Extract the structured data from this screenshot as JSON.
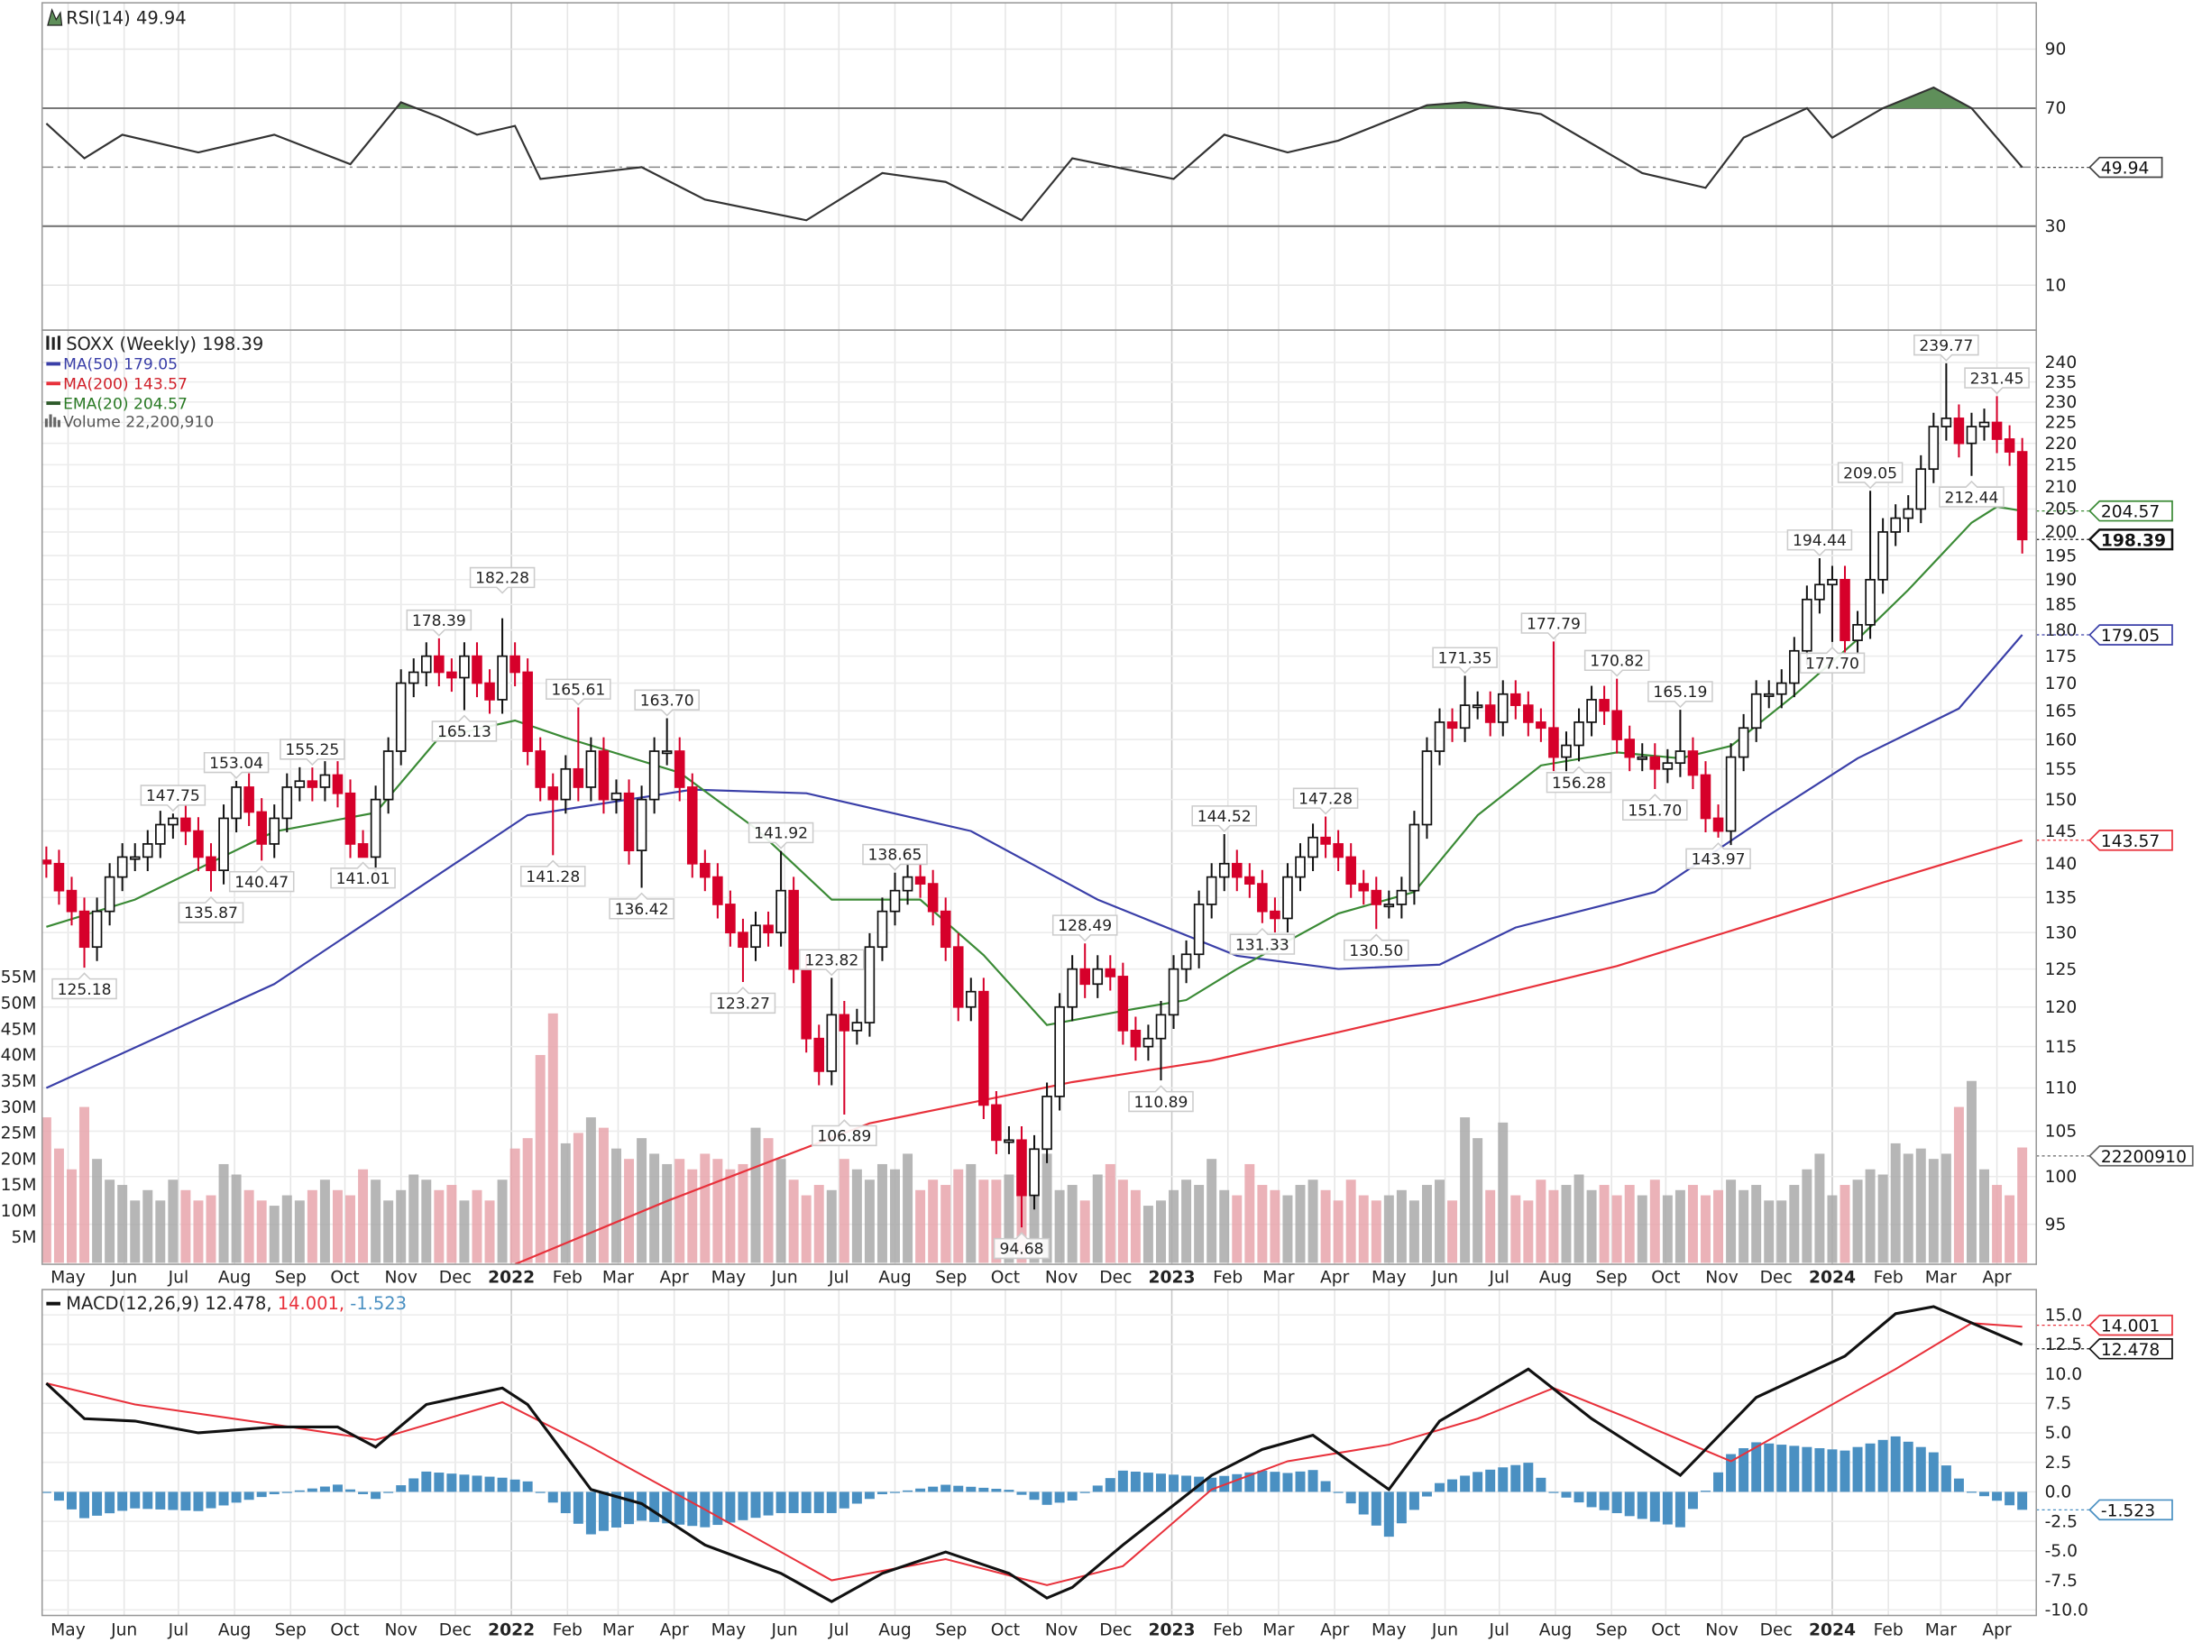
{
  "rsi_panel": {
    "legend": "RSI(14) 49.94",
    "badge": "49.94",
    "levels": {
      "overbought": 70,
      "midline": 50,
      "oversold": 30
    },
    "ticks": [
      "90",
      "70",
      "30",
      "10"
    ]
  },
  "price_panel": {
    "legend_title": "SOXX (Weekly) 198.39",
    "legend_ma50": "MA(50) 179.05",
    "legend_ma200": "MA(200) 143.57",
    "legend_ema20": "EMA(20) 204.57",
    "legend_volume": "Volume 22,200,910",
    "badges": {
      "ema20": "204.57",
      "close": "198.39",
      "ma50": "179.05",
      "ma200": "143.57",
      "volume": "22200910"
    },
    "volume_ticks": [
      "5M",
      "10M",
      "15M",
      "20M",
      "25M",
      "30M",
      "35M",
      "40M",
      "45M",
      "50M",
      "55M"
    ]
  },
  "macd_panel": {
    "legend_prefix": "MACD(12,26,9)",
    "legend_macd": "12.478,",
    "legend_signal": "14.001,",
    "legend_hist": "-1.523",
    "badges": {
      "signal": "14.001",
      "macd": "12.478",
      "hist": "-1.523"
    },
    "ticks": [
      "15.0",
      "12.5",
      "10.0",
      "7.5",
      "5.0",
      "2.5",
      "0.0",
      "-2.5",
      "-5.0",
      "-7.5",
      "-10.0"
    ]
  },
  "colors": {
    "up_candle": "#ffffff",
    "down_candle": "#d6002a",
    "ma50": "#3a3fa8",
    "ma200": "#e8313b",
    "ema20": "#3a8a35",
    "volume_up": "#a9a9a9",
    "volume_down": "#e8a4ac",
    "macd_hist": "#4a90c2",
    "rsi_fill": "#5f8f5a"
  },
  "chart_data": {
    "type": "candlestick",
    "symbol": "SOXX",
    "period": "Weekly",
    "y_scale": "log",
    "ylim": [
      95,
      240
    ],
    "first_week": "2021-04-19",
    "price_ticks": [
      95,
      100,
      105,
      110,
      115,
      120,
      125,
      130,
      135,
      140,
      145,
      150,
      155,
      160,
      165,
      170,
      175,
      180,
      185,
      190,
      195,
      200,
      205,
      210,
      215,
      220,
      225,
      230,
      235,
      240
    ],
    "x_ticks": [
      {
        "label": "May",
        "date": "2021-05-01"
      },
      {
        "label": "Jun",
        "date": "2021-06-01"
      },
      {
        "label": "Jul",
        "date": "2021-07-01"
      },
      {
        "label": "Aug",
        "date": "2021-08-01"
      },
      {
        "label": "Sep",
        "date": "2021-09-01"
      },
      {
        "label": "Oct",
        "date": "2021-10-01"
      },
      {
        "label": "Nov",
        "date": "2021-11-01"
      },
      {
        "label": "Dec",
        "date": "2021-12-01"
      },
      {
        "label": "2022",
        "date": "2022-01-01",
        "bold": true
      },
      {
        "label": "Feb",
        "date": "2022-02-01"
      },
      {
        "label": "Mar",
        "date": "2022-03-01"
      },
      {
        "label": "Apr",
        "date": "2022-04-01"
      },
      {
        "label": "May",
        "date": "2022-05-01"
      },
      {
        "label": "Jun",
        "date": "2022-06-01"
      },
      {
        "label": "Jul",
        "date": "2022-07-01"
      },
      {
        "label": "Aug",
        "date": "2022-08-01"
      },
      {
        "label": "Sep",
        "date": "2022-09-01"
      },
      {
        "label": "Oct",
        "date": "2022-10-01"
      },
      {
        "label": "Nov",
        "date": "2022-11-01"
      },
      {
        "label": "Dec",
        "date": "2022-12-01"
      },
      {
        "label": "2023",
        "date": "2023-01-01",
        "bold": true
      },
      {
        "label": "Feb",
        "date": "2023-02-01"
      },
      {
        "label": "Mar",
        "date": "2023-03-01"
      },
      {
        "label": "Apr",
        "date": "2023-04-01"
      },
      {
        "label": "May",
        "date": "2023-05-01"
      },
      {
        "label": "Jun",
        "date": "2023-06-01"
      },
      {
        "label": "Jul",
        "date": "2023-07-01"
      },
      {
        "label": "Aug",
        "date": "2023-08-01"
      },
      {
        "label": "Sep",
        "date": "2023-09-01"
      },
      {
        "label": "Oct",
        "date": "2023-10-01"
      },
      {
        "label": "Nov",
        "date": "2023-11-01"
      },
      {
        "label": "Dec",
        "date": "2023-12-01"
      },
      {
        "label": "2024",
        "date": "2024-01-01",
        "bold": true
      },
      {
        "label": "Feb",
        "date": "2024-02-01"
      },
      {
        "label": "Mar",
        "date": "2024-03-01"
      },
      {
        "label": "Apr",
        "date": "2024-04-01"
      }
    ],
    "closes": [
      140,
      136,
      133,
      128,
      133,
      138,
      141,
      141,
      143,
      146,
      147,
      145,
      141,
      139,
      147,
      152,
      148,
      143,
      147,
      152,
      153,
      152,
      154,
      151,
      143,
      141,
      150,
      158,
      170,
      172,
      175,
      172,
      171,
      175,
      170,
      167,
      175,
      172,
      158,
      152,
      150,
      155,
      152,
      158,
      150,
      151,
      142,
      150,
      158,
      158,
      152,
      140,
      138,
      134,
      130,
      128,
      131,
      130,
      136,
      125,
      116,
      112,
      119,
      117,
      118,
      128,
      133,
      136,
      138,
      137,
      133,
      128,
      120,
      122,
      108,
      104,
      104,
      98,
      103,
      109,
      120,
      125,
      123,
      125,
      124,
      117,
      115,
      116,
      119,
      125,
      127,
      134,
      138,
      140,
      138,
      137,
      133,
      132,
      138,
      141,
      144,
      143,
      141,
      137,
      136,
      134,
      134,
      136,
      146,
      158,
      163,
      162,
      166,
      166,
      163,
      168,
      166,
      163,
      162,
      157,
      159,
      163,
      167,
      165,
      160,
      157,
      157,
      155,
      156,
      158,
      154,
      147,
      145,
      157,
      162,
      168,
      168,
      170,
      176,
      186,
      189,
      190,
      178,
      181,
      190,
      200,
      203,
      205,
      214,
      224,
      226,
      220,
      224,
      225,
      221,
      218,
      198.39
    ],
    "volume_millions": [
      28,
      22,
      18,
      30,
      20,
      16,
      15,
      12,
      14,
      12,
      16,
      14,
      12,
      13,
      19,
      17,
      14,
      12,
      11,
      13,
      12,
      14,
      16,
      14,
      13,
      18,
      16,
      12,
      14,
      17,
      16,
      14,
      15,
      12,
      14,
      12,
      16,
      22,
      24,
      40,
      48,
      23,
      25,
      28,
      26,
      22,
      20,
      24,
      21,
      19,
      20,
      18,
      21,
      20,
      18,
      19,
      26,
      24,
      20,
      16,
      13,
      15,
      14,
      20,
      18,
      16,
      19,
      18,
      21,
      14,
      16,
      15,
      18,
      19,
      16,
      16,
      17,
      15,
      18,
      21,
      14,
      15,
      12,
      17,
      19,
      16,
      14,
      11,
      12,
      14,
      16,
      15,
      20,
      14,
      13,
      19,
      15,
      14,
      13,
      15,
      16,
      14,
      12,
      16,
      13,
      12,
      13,
      14,
      12,
      15,
      16,
      12,
      28,
      24,
      14,
      27,
      13,
      12,
      16,
      14,
      15,
      17,
      14,
      15,
      13,
      15,
      13,
      16,
      13,
      14,
      15,
      13,
      14,
      16,
      14,
      15,
      12,
      12,
      15,
      18,
      21,
      13,
      15,
      16,
      18,
      17,
      23,
      21,
      22,
      20,
      21,
      30,
      35,
      18,
      15,
      13,
      22.2
    ],
    "annotations": [
      {
        "text": "125.18",
        "date": "2021-05-10",
        "type": "low"
      },
      {
        "text": "147.75",
        "date": "2021-06-28",
        "type": "high"
      },
      {
        "text": "135.87",
        "date": "2021-07-19",
        "type": "low"
      },
      {
        "text": "153.04",
        "date": "2021-08-02",
        "type": "high"
      },
      {
        "text": "140.47",
        "date": "2021-08-16",
        "type": "low"
      },
      {
        "text": "155.25",
        "date": "2021-09-13",
        "type": "high"
      },
      {
        "text": "141.01",
        "date": "2021-10-11",
        "type": "low"
      },
      {
        "text": "178.39",
        "date": "2021-11-22",
        "type": "high"
      },
      {
        "text": "165.13",
        "date": "2021-12-06",
        "type": "low"
      },
      {
        "text": "182.28",
        "date": "2021-12-27",
        "type": "high"
      },
      {
        "text": "141.28",
        "date": "2022-01-24",
        "type": "low"
      },
      {
        "text": "165.61",
        "date": "2022-02-07",
        "type": "high"
      },
      {
        "text": "136.42",
        "date": "2022-03-14",
        "type": "low"
      },
      {
        "text": "163.70",
        "date": "2022-03-28",
        "type": "high"
      },
      {
        "text": "123.27",
        "date": "2022-05-09",
        "type": "low"
      },
      {
        "text": "141.92",
        "date": "2022-05-30",
        "type": "high"
      },
      {
        "text": "123.82",
        "date": "2022-06-27",
        "type": "high"
      },
      {
        "text": "106.89",
        "date": "2022-07-04",
        "type": "low"
      },
      {
        "text": "138.65",
        "date": "2022-08-01",
        "type": "high"
      },
      {
        "text": "94.68",
        "date": "2022-10-10",
        "type": "low"
      },
      {
        "text": "128.49",
        "date": "2022-11-14",
        "type": "high"
      },
      {
        "text": "110.89",
        "date": "2022-12-26",
        "type": "low"
      },
      {
        "text": "144.52",
        "date": "2023-01-30",
        "type": "high"
      },
      {
        "text": "131.33",
        "date": "2023-02-20",
        "type": "low"
      },
      {
        "text": "147.28",
        "date": "2023-03-27",
        "type": "high"
      },
      {
        "text": "130.50",
        "date": "2023-04-24",
        "type": "low"
      },
      {
        "text": "171.35",
        "date": "2023-06-12",
        "type": "high"
      },
      {
        "text": "177.79",
        "date": "2023-07-31",
        "type": "high"
      },
      {
        "text": "156.28",
        "date": "2023-08-14",
        "type": "low"
      },
      {
        "text": "170.82",
        "date": "2023-09-04",
        "type": "high"
      },
      {
        "text": "151.70",
        "date": "2023-09-25",
        "type": "low"
      },
      {
        "text": "165.19",
        "date": "2023-10-09",
        "type": "high"
      },
      {
        "text": "143.97",
        "date": "2023-10-30",
        "type": "low"
      },
      {
        "text": "194.44",
        "date": "2023-12-25",
        "type": "high"
      },
      {
        "text": "177.70",
        "date": "2024-01-01",
        "type": "low"
      },
      {
        "text": "209.05",
        "date": "2024-01-22",
        "type": "high"
      },
      {
        "text": "239.77",
        "date": "2024-03-04",
        "type": "high"
      },
      {
        "text": "212.44",
        "date": "2024-03-18",
        "type": "low"
      },
      {
        "text": "231.45",
        "date": "2024-04-01",
        "type": "high"
      }
    ],
    "ma50": [
      [
        "2021-04-19",
        110
      ],
      [
        "2021-08-23",
        123
      ],
      [
        "2022-01-10",
        147.5
      ],
      [
        "2022-04-11",
        151.6
      ],
      [
        "2022-06-13",
        151
      ],
      [
        "2022-09-12",
        145
      ],
      [
        "2022-11-21",
        134.7
      ],
      [
        "2023-02-06",
        126.8
      ],
      [
        "2023-04-03",
        125
      ],
      [
        "2023-05-29",
        125.6
      ],
      [
        "2023-07-10",
        130.7
      ],
      [
        "2023-09-25",
        135.8
      ],
      [
        "2023-11-27",
        147.5
      ],
      [
        "2024-01-15",
        156.8
      ],
      [
        "2024-03-11",
        165.4
      ],
      [
        "2024-04-15",
        179.05
      ]
    ],
    "ma200": [
      [
        "2022-01-03",
        91
      ],
      [
        "2022-03-28",
        97.4
      ],
      [
        "2022-07-18",
        105.9
      ],
      [
        "2022-11-07",
        110.7
      ],
      [
        "2023-01-23",
        113.3
      ],
      [
        "2023-04-03",
        116.8
      ],
      [
        "2023-06-19",
        120.9
      ],
      [
        "2023-09-04",
        125.4
      ],
      [
        "2023-11-13",
        130.8
      ],
      [
        "2024-01-29",
        137.2
      ],
      [
        "2024-04-15",
        143.57
      ]
    ],
    "ema20": [
      [
        "2021-04-19",
        130.8
      ],
      [
        "2021-06-07",
        134.7
      ],
      [
        "2021-08-23",
        144.9
      ],
      [
        "2021-10-18",
        147.9
      ],
      [
        "2021-11-22",
        160.3
      ],
      [
        "2022-01-03",
        163.3
      ],
      [
        "2022-01-31",
        160.3
      ],
      [
        "2022-04-04",
        154.4
      ],
      [
        "2022-05-16",
        145.4
      ],
      [
        "2022-06-27",
        134.7
      ],
      [
        "2022-08-15",
        134.7
      ],
      [
        "2022-09-19",
        126.9
      ],
      [
        "2022-10-24",
        117.7
      ],
      [
        "2022-12-05",
        119.5
      ],
      [
        "2023-01-09",
        120.9
      ],
      [
        "2023-02-06",
        125
      ],
      [
        "2023-04-03",
        132.7
      ],
      [
        "2023-05-15",
        135.8
      ],
      [
        "2023-06-19",
        147.5
      ],
      [
        "2023-07-24",
        155.6
      ],
      [
        "2023-09-04",
        157.8
      ],
      [
        "2023-10-09",
        156.8
      ],
      [
        "2023-11-06",
        158.9
      ],
      [
        "2023-12-11",
        167.8
      ],
      [
        "2024-01-15",
        178.2
      ],
      [
        "2024-02-12",
        187.9
      ],
      [
        "2024-03-18",
        202
      ],
      [
        "2024-04-01",
        205.5
      ],
      [
        "2024-04-15",
        204.57
      ]
    ],
    "rsi14": [
      [
        "2021-04-19",
        64.8
      ],
      [
        "2021-05-10",
        53
      ],
      [
        "2021-05-31",
        61
      ],
      [
        "2021-07-12",
        55
      ],
      [
        "2021-08-23",
        61
      ],
      [
        "2021-10-04",
        51
      ],
      [
        "2021-11-01",
        72
      ],
      [
        "2021-11-22",
        67
      ],
      [
        "2021-12-13",
        61
      ],
      [
        "2022-01-03",
        64
      ],
      [
        "2022-01-17",
        46
      ],
      [
        "2022-03-14",
        50
      ],
      [
        "2022-04-18",
        39
      ],
      [
        "2022-06-13",
        32
      ],
      [
        "2022-07-25",
        48
      ],
      [
        "2022-08-29",
        45
      ],
      [
        "2022-10-10",
        32
      ],
      [
        "2022-11-07",
        53
      ],
      [
        "2023-01-02",
        46
      ],
      [
        "2023-01-30",
        61
      ],
      [
        "2023-03-06",
        55
      ],
      [
        "2023-04-03",
        59
      ],
      [
        "2023-05-22",
        71
      ],
      [
        "2023-06-12",
        72
      ],
      [
        "2023-07-24",
        68
      ],
      [
        "2023-09-18",
        48
      ],
      [
        "2023-10-23",
        43
      ],
      [
        "2023-11-13",
        60
      ],
      [
        "2023-12-18",
        70
      ],
      [
        "2024-01-01",
        60
      ],
      [
        "2024-01-29",
        70
      ],
      [
        "2024-02-26",
        77
      ],
      [
        "2024-03-18",
        70
      ],
      [
        "2024-04-15",
        49.94
      ]
    ],
    "macd": [
      [
        "2021-04-19",
        9.2
      ],
      [
        "2021-05-10",
        6.2
      ],
      [
        "2021-06-07",
        6.0
      ],
      [
        "2021-07-12",
        5.0
      ],
      [
        "2021-08-23",
        5.5
      ],
      [
        "2021-09-27",
        5.5
      ],
      [
        "2021-10-18",
        3.8
      ],
      [
        "2021-11-15",
        7.4
      ],
      [
        "2021-12-27",
        8.8
      ],
      [
        "2022-01-10",
        7.4
      ],
      [
        "2022-02-14",
        0.2
      ],
      [
        "2022-03-14",
        -1
      ],
      [
        "2022-04-18",
        -4.5
      ],
      [
        "2022-05-30",
        -6.9
      ],
      [
        "2022-06-27",
        -9.3
      ],
      [
        "2022-07-25",
        -6.9
      ],
      [
        "2022-08-29",
        -5.1
      ],
      [
        "2022-10-03",
        -6.9
      ],
      [
        "2022-10-24",
        -9
      ],
      [
        "2022-11-07",
        -8.1
      ],
      [
        "2022-12-05",
        -4.5
      ],
      [
        "2023-01-23",
        1.4
      ],
      [
        "2023-02-20",
        3.6
      ],
      [
        "2023-03-20",
        4.8
      ],
      [
        "2023-05-01",
        0.2
      ],
      [
        "2023-05-29",
        6.0
      ],
      [
        "2023-07-17",
        10.4
      ],
      [
        "2023-08-21",
        6.2
      ],
      [
        "2023-10-09",
        1.4
      ],
      [
        "2023-11-20",
        8
      ],
      [
        "2024-01-08",
        11.5
      ],
      [
        "2024-02-05",
        15.1
      ],
      [
        "2024-02-26",
        15.7
      ],
      [
        "2024-04-15",
        12.478
      ]
    ],
    "macd_signal": [
      [
        "2021-04-19",
        9.2
      ],
      [
        "2021-06-07",
        7.4
      ],
      [
        "2021-08-23",
        5.7
      ],
      [
        "2021-10-18",
        4.4
      ],
      [
        "2021-12-27",
        7.6
      ],
      [
        "2022-02-14",
        3.8
      ],
      [
        "2022-04-18",
        -1.5
      ],
      [
        "2022-06-27",
        -7.5
      ],
      [
        "2022-08-29",
        -5.7
      ],
      [
        "2022-10-24",
        -7.9
      ],
      [
        "2022-12-05",
        -6.3
      ],
      [
        "2023-01-23",
        0.2
      ],
      [
        "2023-03-06",
        2.6
      ],
      [
        "2023-05-01",
        4.0
      ],
      [
        "2023-06-19",
        6.2
      ],
      [
        "2023-07-31",
        8.8
      ],
      [
        "2023-09-11",
        6.2
      ],
      [
        "2023-11-06",
        2.6
      ],
      [
        "2023-12-18",
        6.2
      ],
      [
        "2024-02-05",
        10.4
      ],
      [
        "2024-03-18",
        14.3
      ],
      [
        "2024-04-15",
        14.001
      ]
    ]
  }
}
